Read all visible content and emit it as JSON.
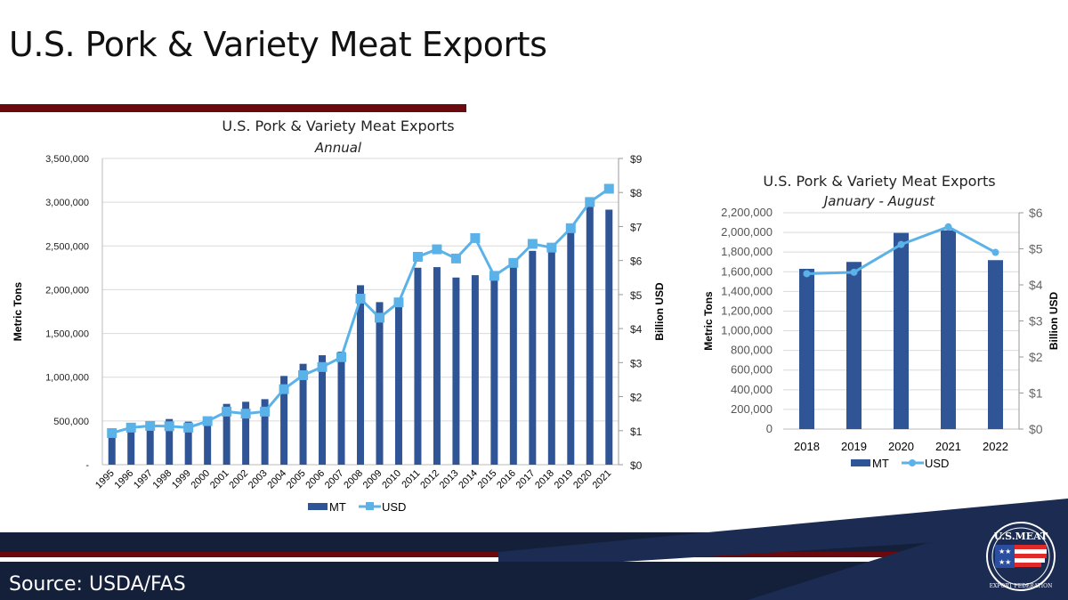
{
  "slide": {
    "title": "U.S. Pork & Variety Meat Exports",
    "source": "Source: USDA/FAS",
    "logo_text": "U.S. MEAT EXPORT FEDERATION"
  },
  "colors": {
    "mt": "#2f5597",
    "usd": "#5ab2e8",
    "navy": "#14203a",
    "dark_red": "#6a0a0f"
  },
  "chart_data": [
    {
      "type": "bar+line",
      "title": "U.S. Pork & Variety Meat Exports",
      "subtitle": "Annual",
      "ylabel": "Metric Tons",
      "y2label": "Billion USD",
      "ylim": [
        0,
        3500000
      ],
      "y2lim": [
        0,
        9
      ],
      "yticks": [
        "-",
        "500,000",
        "1,000,000",
        "1,500,000",
        "2,000,000",
        "2,500,000",
        "3,000,000",
        "3,500,000"
      ],
      "y2ticks": [
        "$0",
        "$1",
        "$2",
        "$3",
        "$4",
        "$5",
        "$6",
        "$7",
        "$8",
        "$9"
      ],
      "grid": true,
      "legend": "bottom",
      "categories": [
        "1995",
        "1996",
        "1997",
        "1998",
        "1999",
        "2000",
        "2001",
        "2002",
        "2003",
        "2004",
        "2005",
        "2006",
        "2007",
        "2008",
        "2009",
        "2010",
        "2011",
        "2012",
        "2013",
        "2014",
        "2015",
        "2016",
        "2017",
        "2018",
        "2019",
        "2020",
        "2021"
      ],
      "series": [
        {
          "name": "MT",
          "type": "bar",
          "axis": "left",
          "values": [
            390000,
            440000,
            470000,
            522000,
            492000,
            480000,
            695000,
            719000,
            749000,
            1014000,
            1153000,
            1251000,
            1292000,
            2051000,
            1858000,
            1850000,
            2251000,
            2258000,
            2139000,
            2166000,
            2130000,
            2270000,
            2444000,
            2430000,
            2651000,
            2949000,
            2915000
          ]
        },
        {
          "name": "USD",
          "type": "line",
          "axis": "right",
          "marker": "square",
          "values": [
            0.93,
            1.09,
            1.14,
            1.13,
            1.09,
            1.28,
            1.56,
            1.5,
            1.56,
            2.22,
            2.63,
            2.87,
            3.16,
            4.88,
            4.32,
            4.77,
            6.11,
            6.33,
            6.06,
            6.66,
            5.55,
            5.93,
            6.49,
            6.38,
            6.95,
            7.72,
            8.11
          ]
        }
      ]
    },
    {
      "type": "bar+line",
      "title": "U.S. Pork & Variety Meat Exports",
      "subtitle": "January - August",
      "ylabel": "Metric Tons",
      "y2label": "Billion USD",
      "ylim": [
        0,
        2200000
      ],
      "y2lim": [
        0,
        6
      ],
      "yticks": [
        "0",
        "200,000",
        "400,000",
        "600,000",
        "800,000",
        "1,000,000",
        "1,200,000",
        "1,400,000",
        "1,600,000",
        "1,800,000",
        "2,000,000",
        "2,200,000"
      ],
      "y2ticks": [
        "$0",
        "$1",
        "$2",
        "$3",
        "$4",
        "$5",
        "$6"
      ],
      "grid": true,
      "legend": "bottom",
      "categories": [
        "2018",
        "2019",
        "2020",
        "2021",
        "2022"
      ],
      "series": [
        {
          "name": "MT",
          "type": "bar",
          "axis": "left",
          "values": [
            1630000,
            1700000,
            1995000,
            2022000,
            1718000
          ]
        },
        {
          "name": "USD",
          "type": "line",
          "axis": "right",
          "marker": "circle",
          "values": [
            4.31,
            4.35,
            5.12,
            5.61,
            4.9
          ]
        }
      ]
    }
  ]
}
